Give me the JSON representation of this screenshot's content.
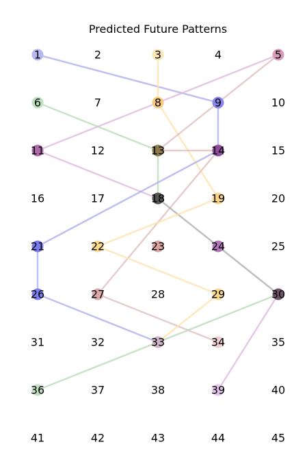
{
  "title": "Predicted Future Patterns",
  "grid": {
    "columns": 5,
    "rows": 9
  },
  "nodes": [
    {
      "id": 1,
      "label": "1",
      "color": "#b6b6f2"
    },
    {
      "id": 2,
      "label": "2"
    },
    {
      "id": 3,
      "label": "3",
      "color": "#fde7b8"
    },
    {
      "id": 4,
      "label": "4"
    },
    {
      "id": 5,
      "label": "5",
      "color": "#d79ab8"
    },
    {
      "id": 6,
      "label": "6",
      "color": "#bfe0bf"
    },
    {
      "id": 7,
      "label": "7"
    },
    {
      "id": 8,
      "label": "8",
      "color": "#fbc97e"
    },
    {
      "id": 9,
      "label": "9",
      "color": "#8a84ee"
    },
    {
      "id": 10,
      "label": "10"
    },
    {
      "id": 11,
      "label": "11",
      "color": "#ad6aa8"
    },
    {
      "id": 12,
      "label": "12"
    },
    {
      "id": 13,
      "label": "13",
      "color": "#8c7a4a"
    },
    {
      "id": 14,
      "label": "14",
      "color": "#8f4b9b"
    },
    {
      "id": 15,
      "label": "15"
    },
    {
      "id": 16,
      "label": "16"
    },
    {
      "id": 17,
      "label": "17"
    },
    {
      "id": 18,
      "label": "18",
      "color": "#555555"
    },
    {
      "id": 19,
      "label": "19",
      "color": "#fcd488"
    },
    {
      "id": 20,
      "label": "20"
    },
    {
      "id": 21,
      "label": "21",
      "color": "#7a7af0"
    },
    {
      "id": 22,
      "label": "22",
      "color": "#fdd98a"
    },
    {
      "id": 23,
      "label": "23",
      "color": "#d9a3a3"
    },
    {
      "id": 24,
      "label": "24",
      "color": "#b176b8"
    },
    {
      "id": 25,
      "label": "25"
    },
    {
      "id": 26,
      "label": "26",
      "color": "#7f7ff2"
    },
    {
      "id": 27,
      "label": "27",
      "color": "#dba9a9"
    },
    {
      "id": 28,
      "label": "28"
    },
    {
      "id": 29,
      "label": "29",
      "color": "#fdd98a"
    },
    {
      "id": 30,
      "label": "30",
      "color": "#705468"
    },
    {
      "id": 31,
      "label": "31"
    },
    {
      "id": 32,
      "label": "32"
    },
    {
      "id": 33,
      "label": "33",
      "color": "#cfb3c6"
    },
    {
      "id": 34,
      "label": "34",
      "color": "#efcfcf"
    },
    {
      "id": 35,
      "label": "35"
    },
    {
      "id": 36,
      "label": "36",
      "color": "#c3e2c3"
    },
    {
      "id": 37,
      "label": "37"
    },
    {
      "id": 38,
      "label": "38"
    },
    {
      "id": 39,
      "label": "39",
      "color": "#e3c3ea"
    },
    {
      "id": 40,
      "label": "40"
    },
    {
      "id": 41,
      "label": "41"
    },
    {
      "id": 42,
      "label": "42"
    },
    {
      "id": 43,
      "label": "43"
    },
    {
      "id": 44,
      "label": "44"
    },
    {
      "id": 45,
      "label": "45"
    }
  ],
  "edges": [
    {
      "from": 1,
      "to": 9,
      "color": "#aaaaee"
    },
    {
      "from": 3,
      "to": 8,
      "color": "#fde2a8"
    },
    {
      "from": 8,
      "to": 19,
      "color": "#fde2a8"
    },
    {
      "from": 5,
      "to": 11,
      "color": "#dcb6dc"
    },
    {
      "from": 5,
      "to": 13,
      "color": "#dcbcbc"
    },
    {
      "from": 6,
      "to": 13,
      "color": "#b5dab5"
    },
    {
      "from": 9,
      "to": 14,
      "color": "#aaaaee"
    },
    {
      "from": 11,
      "to": 18,
      "color": "#dcb6dc"
    },
    {
      "from": 13,
      "to": 14,
      "color": "#dcbcbc"
    },
    {
      "from": 13,
      "to": 18,
      "color": "#b5dab5"
    },
    {
      "from": 14,
      "to": 27,
      "color": "#dcbcbc"
    },
    {
      "from": 14,
      "to": 21,
      "color": "#aaaaee"
    },
    {
      "from": 18,
      "to": 30,
      "color": "#aaaaaa"
    },
    {
      "from": 19,
      "to": 22,
      "color": "#fde2a8"
    },
    {
      "from": 22,
      "to": 29,
      "color": "#fde2a8"
    },
    {
      "from": 21,
      "to": 26,
      "color": "#aaaaee"
    },
    {
      "from": 26,
      "to": 33,
      "color": "#aaaaee"
    },
    {
      "from": 27,
      "to": 34,
      "color": "#dcbcbc"
    },
    {
      "from": 29,
      "to": 33,
      "color": "#fde2a8"
    },
    {
      "from": 30,
      "to": 36,
      "color": "#b5dab5"
    },
    {
      "from": 30,
      "to": 39,
      "color": "#dcb6dc"
    }
  ]
}
